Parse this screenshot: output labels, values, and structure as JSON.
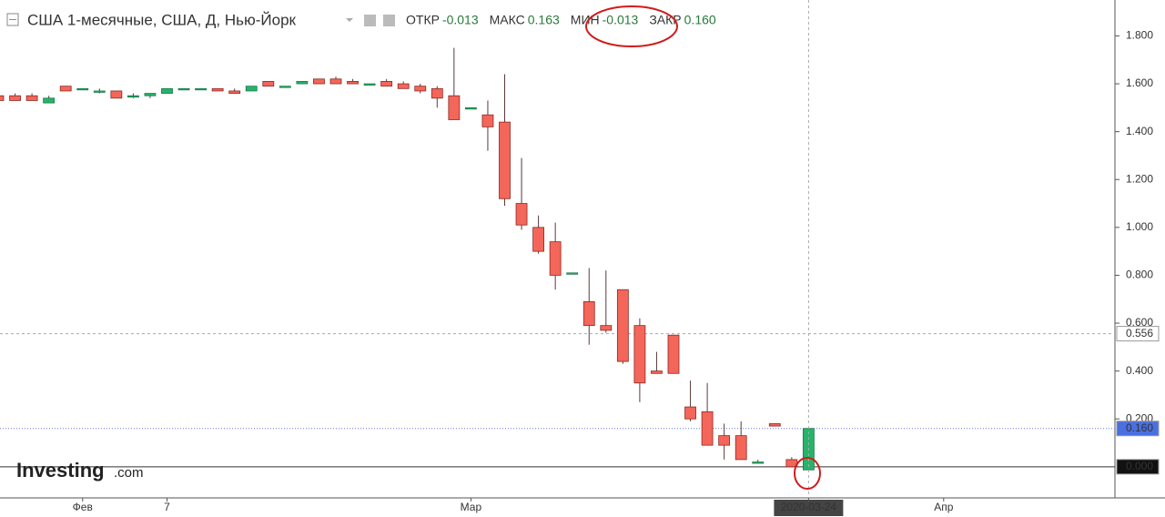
{
  "chart_data": {
    "type": "candlestick",
    "title": "США 1-месячные, США, Д, Нью-Йорк",
    "ohlc_legend": [
      {
        "label": "ОТКР",
        "value": "-0.013"
      },
      {
        "label": "МАКС",
        "value": "0.163"
      },
      {
        "label": "МИН",
        "value": "-0.013"
      },
      {
        "label": "ЗАКР",
        "value": "0.160"
      }
    ],
    "logo": {
      "name": "Investing",
      "suffix": ".com"
    },
    "categories": [
      null,
      null,
      null,
      null,
      null,
      "Фев",
      null,
      null,
      null,
      null,
      "7",
      null,
      null,
      null,
      null,
      null,
      null,
      null,
      null,
      null,
      null,
      null,
      null,
      null,
      null,
      null,
      null,
      null,
      "Мар",
      null,
      null,
      null,
      null,
      null,
      null,
      null,
      null,
      null,
      null,
      null,
      null,
      null,
      null,
      null,
      null,
      null,
      null,
      null,
      "2020-03-24",
      null,
      null,
      null,
      null,
      null,
      null,
      null,
      "Апр"
    ],
    "open": [
      1.55,
      1.55,
      1.55,
      1.52,
      1.59,
      1.58,
      1.57,
      1.57,
      1.55,
      1.55,
      1.56,
      1.58,
      1.58,
      1.58,
      1.57,
      1.57,
      1.61,
      1.59,
      1.6,
      1.62,
      1.62,
      1.61,
      1.6,
      1.61,
      1.6,
      1.59,
      1.58,
      1.55,
      1.5,
      1.47,
      1.44,
      1.1,
      1.0,
      0.94,
      0.81,
      0.69,
      0.59,
      0.74,
      0.59,
      0.4,
      0.55,
      0.25,
      0.23,
      0.13,
      0.13,
      0.02,
      0.18,
      0.03,
      -0.013,
      null,
      null,
      null,
      null,
      null,
      null,
      null,
      null
    ],
    "high": [
      1.56,
      1.56,
      1.56,
      1.55,
      1.59,
      1.58,
      1.58,
      1.57,
      1.56,
      1.56,
      1.58,
      1.58,
      1.58,
      1.58,
      1.58,
      1.59,
      1.61,
      1.59,
      1.61,
      1.62,
      1.63,
      1.62,
      1.6,
      1.62,
      1.61,
      1.6,
      1.59,
      1.75,
      1.5,
      1.53,
      1.64,
      1.29,
      1.05,
      1.02,
      0.81,
      0.83,
      0.82,
      0.74,
      0.62,
      0.48,
      0.55,
      0.36,
      0.35,
      0.18,
      0.19,
      0.03,
      0.18,
      0.04,
      0.163,
      null,
      null,
      null,
      null,
      null,
      null,
      null,
      null
    ],
    "low": [
      1.53,
      1.53,
      1.53,
      1.52,
      1.57,
      1.58,
      1.56,
      1.54,
      1.54,
      1.54,
      1.56,
      1.58,
      1.58,
      1.57,
      1.56,
      1.57,
      1.59,
      1.59,
      1.6,
      1.6,
      1.6,
      1.6,
      1.6,
      1.59,
      1.58,
      1.56,
      1.5,
      1.45,
      1.5,
      1.32,
      1.09,
      0.99,
      0.89,
      0.74,
      0.81,
      0.51,
      0.56,
      0.43,
      0.27,
      0.39,
      0.39,
      0.19,
      0.09,
      0.03,
      0.03,
      0.02,
      0.17,
      0.0,
      -0.013,
      null,
      null,
      null,
      null,
      null,
      null,
      null,
      null
    ],
    "close": [
      1.53,
      1.53,
      1.53,
      1.54,
      1.57,
      1.58,
      1.57,
      1.54,
      1.55,
      1.56,
      1.58,
      1.58,
      1.58,
      1.57,
      1.56,
      1.59,
      1.59,
      1.59,
      1.61,
      1.6,
      1.6,
      1.6,
      1.6,
      1.59,
      1.58,
      1.57,
      1.54,
      1.45,
      1.5,
      1.42,
      1.12,
      1.01,
      0.9,
      0.8,
      0.81,
      0.59,
      0.57,
      0.44,
      0.35,
      0.39,
      0.39,
      0.2,
      0.09,
      0.09,
      0.03,
      0.02,
      0.17,
      0.0,
      0.16,
      null,
      null,
      null,
      null,
      null,
      null,
      null,
      null
    ],
    "up_color": "#26b36a",
    "down_color": "#f4665a",
    "ylim": [
      -0.13,
      1.95
    ],
    "yticks": [
      {
        "value": 0.2,
        "label": "0.200"
      },
      {
        "value": 0.4,
        "label": "0.400"
      },
      {
        "value": 0.6,
        "label": "0.600"
      },
      {
        "value": 0.8,
        "label": "0.800"
      },
      {
        "value": 1.0,
        "label": "1.000"
      },
      {
        "value": 1.2,
        "label": "1.200"
      },
      {
        "value": 1.4,
        "label": "1.400"
      },
      {
        "value": 1.6,
        "label": "1.600"
      },
      {
        "value": 1.8,
        "label": "1.800"
      }
    ],
    "crosshair": {
      "value": 0.556,
      "label": "0.556"
    },
    "last_price": {
      "value": 0.16,
      "label": "0.160"
    },
    "zero_line": {
      "value": 0,
      "label": "0.000"
    }
  }
}
